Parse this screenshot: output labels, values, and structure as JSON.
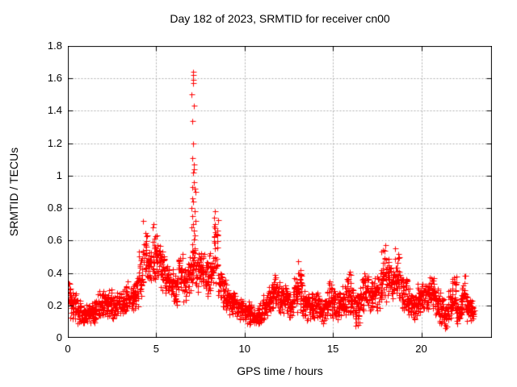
{
  "window": {
    "background": "#ffffff"
  },
  "chart_data": {
    "type": "scatter",
    "title": "Day 182 of 2023, SRMTID for receiver cn00",
    "xlabel": "GPS time / hours",
    "ylabel": "SRMTID / TECUs",
    "xlim": [
      0,
      24
    ],
    "ylim": [
      0,
      1.8
    ],
    "xticks": [
      {
        "value": 0,
        "label": "0"
      },
      {
        "value": 5,
        "label": "5"
      },
      {
        "value": 10,
        "label": "10"
      },
      {
        "value": 15,
        "label": "15"
      },
      {
        "value": 20,
        "label": "20"
      }
    ],
    "yticks": [
      {
        "value": 0,
        "label": "0"
      },
      {
        "value": 0.2,
        "label": "0.2"
      },
      {
        "value": 0.4,
        "label": "0.4"
      },
      {
        "value": 0.6,
        "label": "0.6"
      },
      {
        "value": 0.8,
        "label": "0.8"
      },
      {
        "value": 1,
        "label": "1"
      },
      {
        "value": 1.2,
        "label": "1.2"
      },
      {
        "value": 1.4,
        "label": "1.4"
      },
      {
        "value": 1.6,
        "label": "1.6"
      },
      {
        "value": 1.8,
        "label": "1.8"
      }
    ],
    "grid": true,
    "grid_style": "dashed",
    "legend": "none",
    "marker": {
      "shape": "plus",
      "size": 7
    },
    "colors": {
      "marker": "#ff0000",
      "grid": "#b0b0b0",
      "axis": "#000000",
      "background": "#ffffff",
      "text": "#000000"
    },
    "series": [
      {
        "name": "SRMTID",
        "x_range_hours": [
          0,
          23
        ],
        "envelope_bin_width_hours": 0.25,
        "points_per_bin": 26,
        "envelope": [
          [
            0.0,
            0.1,
            0.36
          ],
          [
            0.25,
            0.1,
            0.33
          ],
          [
            0.5,
            0.07,
            0.25
          ],
          [
            0.75,
            0.06,
            0.2
          ],
          [
            1.0,
            0.08,
            0.22
          ],
          [
            1.25,
            0.08,
            0.24
          ],
          [
            1.5,
            0.08,
            0.28
          ],
          [
            1.75,
            0.1,
            0.3
          ],
          [
            2.0,
            0.1,
            0.28
          ],
          [
            2.25,
            0.1,
            0.33
          ],
          [
            2.5,
            0.1,
            0.28
          ],
          [
            2.75,
            0.12,
            0.3
          ],
          [
            3.0,
            0.12,
            0.32
          ],
          [
            3.25,
            0.14,
            0.38
          ],
          [
            3.5,
            0.14,
            0.36
          ],
          [
            3.75,
            0.16,
            0.4
          ],
          [
            4.0,
            0.2,
            0.55
          ],
          [
            4.25,
            0.28,
            0.72
          ],
          [
            4.5,
            0.3,
            0.62
          ],
          [
            4.75,
            0.32,
            0.7
          ],
          [
            5.0,
            0.3,
            0.63
          ],
          [
            5.25,
            0.28,
            0.55
          ],
          [
            5.5,
            0.25,
            0.5
          ],
          [
            5.75,
            0.22,
            0.46
          ],
          [
            6.0,
            0.2,
            0.45
          ],
          [
            6.25,
            0.24,
            0.56
          ],
          [
            6.5,
            0.22,
            0.46
          ],
          [
            6.75,
            0.25,
            0.5
          ],
          [
            7.0,
            0.3,
            0.62
          ],
          [
            7.25,
            0.28,
            0.55
          ],
          [
            7.5,
            0.25,
            0.6
          ],
          [
            7.75,
            0.22,
            0.5
          ],
          [
            8.0,
            0.24,
            0.58
          ],
          [
            8.25,
            0.25,
            0.78
          ],
          [
            8.5,
            0.18,
            0.45
          ],
          [
            8.75,
            0.15,
            0.38
          ],
          [
            9.0,
            0.13,
            0.32
          ],
          [
            9.25,
            0.12,
            0.3
          ],
          [
            9.5,
            0.1,
            0.26
          ],
          [
            9.75,
            0.1,
            0.25
          ],
          [
            10.0,
            0.08,
            0.24
          ],
          [
            10.25,
            0.08,
            0.22
          ],
          [
            10.5,
            0.05,
            0.2
          ],
          [
            10.75,
            0.06,
            0.22
          ],
          [
            11.0,
            0.1,
            0.28
          ],
          [
            11.25,
            0.12,
            0.35
          ],
          [
            11.5,
            0.15,
            0.42
          ],
          [
            11.75,
            0.13,
            0.35
          ],
          [
            12.0,
            0.12,
            0.32
          ],
          [
            12.25,
            0.12,
            0.35
          ],
          [
            12.5,
            0.1,
            0.28
          ],
          [
            12.75,
            0.12,
            0.4
          ],
          [
            13.0,
            0.15,
            0.47
          ],
          [
            13.25,
            0.1,
            0.3
          ],
          [
            13.5,
            0.1,
            0.28
          ],
          [
            13.75,
            0.1,
            0.3
          ],
          [
            14.0,
            0.1,
            0.32
          ],
          [
            14.25,
            0.08,
            0.26
          ],
          [
            14.5,
            0.1,
            0.3
          ],
          [
            14.75,
            0.12,
            0.42
          ],
          [
            15.0,
            0.1,
            0.32
          ],
          [
            15.25,
            0.1,
            0.3
          ],
          [
            15.5,
            0.12,
            0.38
          ],
          [
            15.75,
            0.12,
            0.44
          ],
          [
            16.0,
            0.1,
            0.32
          ],
          [
            16.25,
            0.05,
            0.28
          ],
          [
            16.5,
            0.12,
            0.38
          ],
          [
            16.75,
            0.15,
            0.45
          ],
          [
            17.0,
            0.14,
            0.4
          ],
          [
            17.25,
            0.15,
            0.42
          ],
          [
            17.5,
            0.15,
            0.45
          ],
          [
            17.75,
            0.2,
            0.57
          ],
          [
            18.0,
            0.2,
            0.52
          ],
          [
            18.25,
            0.18,
            0.48
          ],
          [
            18.5,
            0.2,
            0.55
          ],
          [
            18.75,
            0.15,
            0.42
          ],
          [
            19.0,
            0.13,
            0.38
          ],
          [
            19.25,
            0.1,
            0.32
          ],
          [
            19.5,
            0.1,
            0.3
          ],
          [
            19.75,
            0.14,
            0.35
          ],
          [
            20.0,
            0.15,
            0.38
          ],
          [
            20.25,
            0.14,
            0.42
          ],
          [
            20.5,
            0.15,
            0.4
          ],
          [
            20.75,
            0.12,
            0.35
          ],
          [
            21.0,
            0.08,
            0.28
          ],
          [
            21.25,
            0.04,
            0.22
          ],
          [
            21.5,
            0.08,
            0.3
          ],
          [
            21.75,
            0.12,
            0.43
          ],
          [
            22.0,
            0.05,
            0.25
          ],
          [
            22.25,
            0.12,
            0.41
          ],
          [
            22.5,
            0.08,
            0.28
          ],
          [
            22.75,
            0.08,
            0.24
          ]
        ],
        "peak_points": [
          [
            7.08,
            1.64
          ],
          [
            7.09,
            1.62
          ],
          [
            7.07,
            1.59
          ],
          [
            7.1,
            1.57
          ],
          [
            7.0,
            1.5
          ],
          [
            7.12,
            1.43
          ],
          [
            7.02,
            1.34
          ],
          [
            7.1,
            1.2
          ],
          [
            7.05,
            1.11
          ],
          [
            7.15,
            1.07
          ],
          [
            7.12,
            1.04
          ],
          [
            7.08,
            1.02
          ],
          [
            7.14,
            0.96
          ],
          [
            7.02,
            0.93
          ],
          [
            7.18,
            0.92
          ],
          [
            7.2,
            0.9
          ],
          [
            7.06,
            0.86
          ],
          [
            7.1,
            0.84
          ],
          [
            6.98,
            0.8
          ],
          [
            7.16,
            0.78
          ],
          [
            7.04,
            0.75
          ],
          [
            7.22,
            0.72
          ],
          [
            7.08,
            0.7
          ],
          [
            7.0,
            0.68
          ],
          [
            7.12,
            0.66
          ],
          [
            7.18,
            0.63
          ],
          [
            8.3,
            0.78
          ],
          [
            8.28,
            0.74
          ],
          [
            8.33,
            0.7
          ],
          [
            4.27,
            0.72
          ],
          [
            4.85,
            0.7
          ],
          [
            4.8,
            0.68
          ],
          [
            5.05,
            0.63
          ],
          [
            17.95,
            0.57
          ],
          [
            18.52,
            0.55
          ],
          [
            13.02,
            0.47
          ]
        ]
      }
    ]
  }
}
